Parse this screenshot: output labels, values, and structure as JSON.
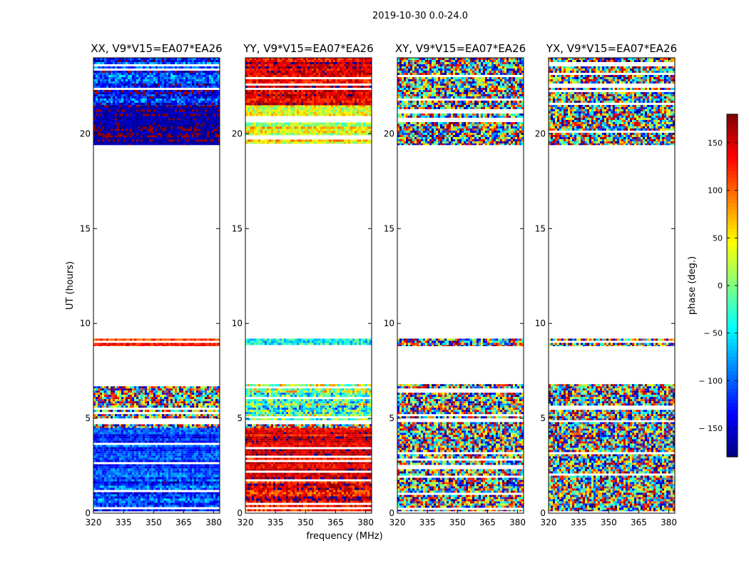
{
  "figure_title": "2019-10-30 0.0-24.0",
  "shared": {
    "xlabel": "frequency (MHz)",
    "ylabel": "UT (hours)",
    "xlim": [
      320,
      383
    ],
    "ylim": [
      0,
      24
    ],
    "xticks": [
      320,
      335,
      350,
      365,
      380
    ],
    "yticks": [
      0,
      5,
      10,
      15,
      20
    ]
  },
  "chart_data": [
    {
      "type": "heatmap",
      "title": "XX, V9*V15=EA07*EA26",
      "xlabel": "frequency (MHz)",
      "ylabel": "UT (hours)",
      "data_time_ranges_hours": [
        [
          0.1,
          4.8
        ],
        [
          4.9,
          6.8
        ],
        [
          8.8,
          9.2
        ],
        [
          19.4,
          24.0
        ]
      ],
      "dominant_phase_deg": {
        "0.1-4.5": -110,
        "4.5-6.8": "mixed",
        "8.8-9.2": 120,
        "19.4-24.0": "banded -170/170"
      }
    },
    {
      "type": "heatmap",
      "title": "YY, V9*V15=EA07*EA26",
      "xlabel": "frequency (MHz)",
      "ylabel": "UT (hours)",
      "data_time_ranges_hours": [
        [
          0.1,
          4.8
        ],
        [
          4.9,
          6.8
        ],
        [
          8.8,
          9.2
        ],
        [
          19.4,
          24.0
        ]
      ],
      "dominant_phase_deg": {
        "0.1-4.5": 140,
        "4.5-6.8": "mixed",
        "8.8-9.2": -40,
        "19.4-24.0": "banded 20/170"
      }
    },
    {
      "type": "heatmap",
      "title": "XY, V9*V15=EA07*EA26",
      "xlabel": "frequency (MHz)",
      "ylabel": "UT (hours)",
      "data_time_ranges_hours": [
        [
          0.1,
          4.8
        ],
        [
          4.9,
          6.8
        ],
        [
          8.8,
          9.2
        ],
        [
          19.4,
          24.0
        ]
      ],
      "dominant_phase_deg": "random noise"
    },
    {
      "type": "heatmap",
      "title": "YX, V9*V15=EA07*EA26",
      "xlabel": "frequency (MHz)",
      "ylabel": "UT (hours)",
      "data_time_ranges_hours": [
        [
          0.1,
          4.8
        ],
        [
          4.9,
          6.8
        ],
        [
          8.8,
          9.2
        ],
        [
          19.4,
          24.0
        ]
      ],
      "dominant_phase_deg": "random noise"
    }
  ],
  "colorbar": {
    "label": "phase (deg.)",
    "range": [
      -180,
      180
    ],
    "ticks": [
      150,
      100,
      50,
      0,
      -50,
      -100,
      -150
    ],
    "tick_labels": [
      "150",
      "100",
      "50",
      "0",
      "− 50",
      "− 100",
      "− 150"
    ]
  }
}
